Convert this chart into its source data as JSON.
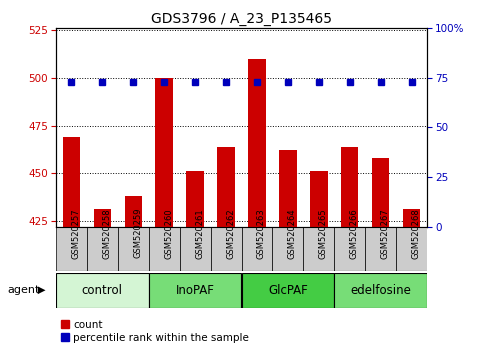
{
  "title": "GDS3796 / A_23_P135465",
  "samples": [
    "GSM520257",
    "GSM520258",
    "GSM520259",
    "GSM520260",
    "GSM520261",
    "GSM520262",
    "GSM520263",
    "GSM520264",
    "GSM520265",
    "GSM520266",
    "GSM520267",
    "GSM520268"
  ],
  "bar_values": [
    469,
    431,
    438,
    500,
    451,
    464,
    510,
    462,
    451,
    464,
    458,
    431
  ],
  "percentile_values": [
    73,
    73,
    73,
    73,
    73,
    73,
    73,
    73,
    73,
    73,
    73,
    73
  ],
  "ylim_left": [
    422,
    526
  ],
  "ylim_right": [
    0,
    100
  ],
  "yticks_left": [
    425,
    450,
    475,
    500,
    525
  ],
  "yticks_right": [
    0,
    25,
    50,
    75,
    100
  ],
  "bar_color": "#cc0000",
  "dot_color": "#0000bb",
  "groups": [
    {
      "label": "control",
      "start": 0,
      "end": 3,
      "color": "#d4f5d4"
    },
    {
      "label": "InoPAF",
      "start": 3,
      "end": 6,
      "color": "#77dd77"
    },
    {
      "label": "GlcPAF",
      "start": 6,
      "end": 9,
      "color": "#44cc44"
    },
    {
      "label": "edelfosine",
      "start": 9,
      "end": 12,
      "color": "#77dd77"
    }
  ],
  "agent_label": "agent",
  "title_fontsize": 10,
  "tick_fontsize": 7.5,
  "group_fontsize": 8.5,
  "sample_fontsize": 6,
  "legend_fontsize": 7.5
}
